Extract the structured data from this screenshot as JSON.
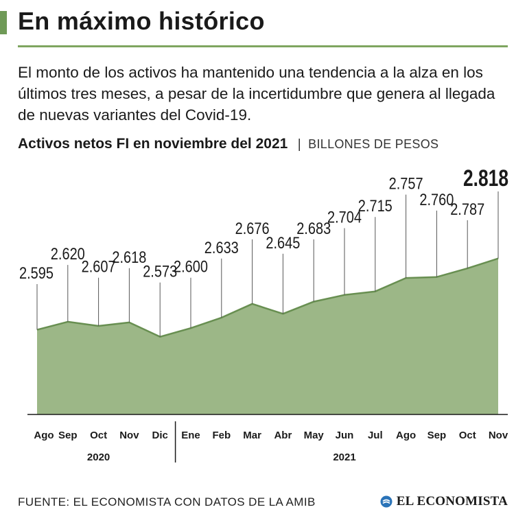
{
  "header": {
    "title": "En máximo histórico",
    "intro": "El monto de los activos ha mantenido una tendencia a la alza en los últimos tres meses, a pesar de la incertidumbre que genera al llegada de nuevas variantes del Covid-19.",
    "subtitle": "Activos netos FI en noviembre del 2021",
    "separator": "|",
    "unit": "BILLONES DE PESOS"
  },
  "chart_data": {
    "type": "area",
    "title": "Activos netos FI en noviembre del 2021",
    "unit": "BILLONES DE PESOS",
    "categories": [
      "Ago",
      "Sep",
      "Oct",
      "Nov",
      "Dic",
      "Ene",
      "Feb",
      "Mar",
      "Abr",
      "May",
      "Jun",
      "Jul",
      "Ago",
      "Sep",
      "Oct",
      "Nov"
    ],
    "values": [
      2.595,
      2.62,
      2.607,
      2.618,
      2.573,
      2.6,
      2.633,
      2.676,
      2.645,
      2.683,
      2.704,
      2.715,
      2.757,
      2.76,
      2.787,
      2.818
    ],
    "labels": [
      "2.595",
      "2.620",
      "2.607",
      "2.618",
      "2.573",
      "2.600",
      "2.633",
      "2.676",
      "2.645",
      "2.683",
      "2.704",
      "2.715",
      "2.757",
      "2.760",
      "2.787",
      "2.818"
    ],
    "label_heights": [
      2.755,
      2.815,
      2.775,
      2.805,
      2.76,
      2.775,
      2.835,
      2.895,
      2.85,
      2.895,
      2.93,
      2.965,
      3.035,
      2.985,
      2.955,
      3.045
    ],
    "highlight_index": 15,
    "year_groups": [
      {
        "label": "2020",
        "start": 0,
        "end": 4
      },
      {
        "label": "2021",
        "start": 5,
        "end": 15
      }
    ],
    "ylim": [
      2.33,
      3.09
    ],
    "xlabel": "",
    "ylabel": "",
    "grid": false,
    "colors": {
      "fill": "#9cb787",
      "line": "#688f51",
      "leader": "#555555"
    }
  },
  "footer": {
    "source": "FUENTE: EL ECONOMISTA CON DATOS DE LA AMIB",
    "brand": "EL ECONOMISTA",
    "brand_icon": "el-economista-logo-icon"
  }
}
